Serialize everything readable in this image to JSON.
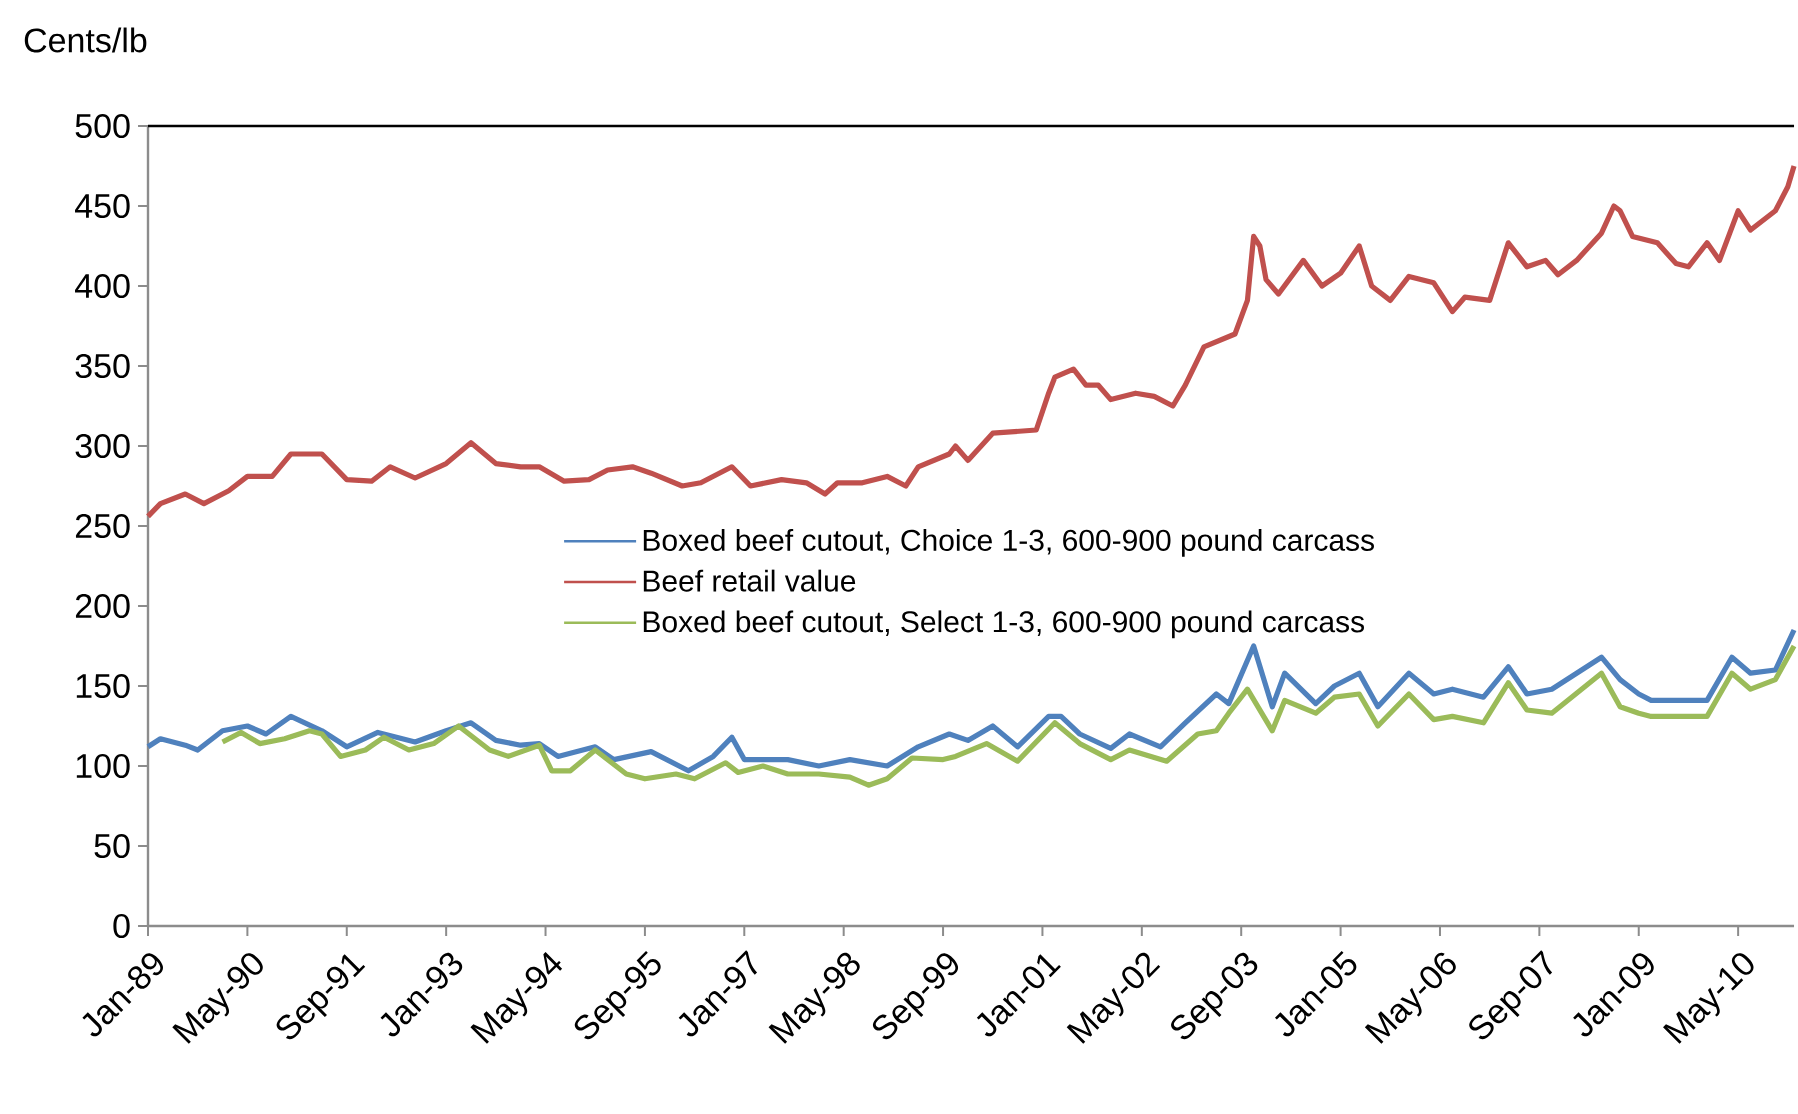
{
  "chart_data": {
    "type": "line",
    "ylabel": "Cents/lb",
    "xlim": [
      "1989-01",
      "2011-02"
    ],
    "ylim": [
      0,
      500
    ],
    "xticks": [
      {
        "value": "1989-01",
        "label": "Jan-89"
      },
      {
        "value": "1990-05",
        "label": "May-90"
      },
      {
        "value": "1991-09",
        "label": "Sep-91"
      },
      {
        "value": "1993-01",
        "label": "Jan-93"
      },
      {
        "value": "1994-05",
        "label": "May-94"
      },
      {
        "value": "1995-09",
        "label": "Sep-95"
      },
      {
        "value": "1997-01",
        "label": "Jan-97"
      },
      {
        "value": "1998-05",
        "label": "May-98"
      },
      {
        "value": "1999-09",
        "label": "Sep-99"
      },
      {
        "value": "2001-01",
        "label": "Jan-01"
      },
      {
        "value": "2002-05",
        "label": "May-02"
      },
      {
        "value": "2003-09",
        "label": "Sep-03"
      },
      {
        "value": "2005-01",
        "label": "Jan-05"
      },
      {
        "value": "2006-05",
        "label": "May-06"
      },
      {
        "value": "2007-09",
        "label": "Sep-07"
      },
      {
        "value": "2009-01",
        "label": "Jan-09"
      },
      {
        "value": "2010-05",
        "label": "May-10"
      }
    ],
    "yticks": [
      0,
      50,
      100,
      150,
      200,
      250,
      300,
      350,
      400,
      450,
      500
    ],
    "grid": false,
    "legend": "center",
    "marker": "none",
    "line_style": "solid",
    "series": [
      {
        "name": "Boxed beef cutout, Choice 1-3, 600-900 pound carcass",
        "color": "#4f81bd",
        "x": [
          "1989-01",
          "1989-03",
          "1989-07",
          "1989-09",
          "1990-01",
          "1990-05",
          "1990-08",
          "1990-12",
          "1991-05",
          "1991-09",
          "1992-02",
          "1992-08",
          "1993-01",
          "1993-05",
          "1993-09",
          "1994-01",
          "1994-04",
          "1994-07",
          "1995-01",
          "1995-04",
          "1995-10",
          "1996-04",
          "1996-08",
          "1996-11",
          "1997-01",
          "1997-08",
          "1998-01",
          "1998-06",
          "1998-12",
          "1999-05",
          "1999-10",
          "2000-01",
          "2000-05",
          "2000-09",
          "2001-02",
          "2001-04",
          "2001-07",
          "2001-12",
          "2002-03",
          "2002-08",
          "2002-12",
          "2003-05",
          "2003-07",
          "2003-11",
          "2004-02",
          "2004-04",
          "2004-09",
          "2004-12",
          "2005-04",
          "2005-07",
          "2005-12",
          "2006-04",
          "2006-07",
          "2006-12",
          "2007-04",
          "2007-07",
          "2007-11",
          "2008-07",
          "2008-10",
          "2009-01",
          "2009-03",
          "2009-07",
          "2009-12",
          "2010-04",
          "2010-07",
          "2010-11",
          "2011-02"
        ],
        "values": [
          112,
          117,
          113,
          110,
          122,
          125,
          120,
          131,
          122,
          112,
          121,
          115,
          122,
          127,
          116,
          113,
          114,
          106,
          112,
          104,
          109,
          97,
          106,
          118,
          104,
          104,
          100,
          104,
          100,
          112,
          120,
          116,
          125,
          112,
          131,
          131,
          120,
          111,
          120,
          112,
          127,
          145,
          139,
          175,
          137,
          158,
          139,
          150,
          158,
          137,
          158,
          145,
          148,
          143,
          162,
          145,
          148,
          168,
          154,
          145,
          141,
          141,
          141,
          168,
          158,
          160,
          185
        ]
      },
      {
        "name": "Beef retail value",
        "color": "#c0504d",
        "x": [
          "1989-01",
          "1989-03",
          "1989-07",
          "1989-10",
          "1990-02",
          "1990-05",
          "1990-09",
          "1990-12",
          "1991-05",
          "1991-09",
          "1992-01",
          "1992-04",
          "1992-08",
          "1993-01",
          "1993-05",
          "1993-09",
          "1994-01",
          "1994-04",
          "1994-08",
          "1994-12",
          "1995-03",
          "1995-07",
          "1995-10",
          "1996-03",
          "1996-06",
          "1996-11",
          "1997-02",
          "1997-07",
          "1997-11",
          "1998-02",
          "1998-04",
          "1998-08",
          "1998-12",
          "1999-03",
          "1999-05",
          "1999-10",
          "1999-11",
          "2000-01",
          "2000-05",
          "2000-12",
          "2001-02",
          "2001-03",
          "2001-06",
          "2001-08",
          "2001-10",
          "2001-12",
          "2002-04",
          "2002-07",
          "2002-10",
          "2002-12",
          "2003-03",
          "2003-08",
          "2003-10",
          "2003-11",
          "2003-12",
          "2004-01",
          "2004-03",
          "2004-07",
          "2004-10",
          "2005-01",
          "2005-04",
          "2005-06",
          "2005-09",
          "2005-12",
          "2006-04",
          "2006-07",
          "2006-09",
          "2007-01",
          "2007-04",
          "2007-07",
          "2007-10",
          "2007-12",
          "2008-03",
          "2008-07",
          "2008-09",
          "2008-10",
          "2008-12",
          "2009-04",
          "2009-07",
          "2009-09",
          "2009-12",
          "2010-02",
          "2010-05",
          "2010-07",
          "2010-11",
          "2011-01",
          "2011-02"
        ],
        "values": [
          256,
          264,
          270,
          264,
          272,
          281,
          281,
          295,
          295,
          279,
          278,
          287,
          280,
          289,
          302,
          289,
          287,
          287,
          278,
          279,
          285,
          287,
          283,
          275,
          277,
          287,
          275,
          279,
          277,
          270,
          277,
          277,
          281,
          275,
          287,
          295,
          300,
          291,
          308,
          310,
          333,
          343,
          348,
          338,
          338,
          329,
          333,
          331,
          325,
          338,
          362,
          370,
          391,
          431,
          425,
          404,
          395,
          416,
          400,
          408,
          425,
          400,
          391,
          406,
          402,
          384,
          393,
          391,
          427,
          412,
          416,
          407,
          416,
          433,
          450,
          447,
          431,
          427,
          414,
          412,
          427,
          416,
          447,
          435,
          447,
          462,
          475
        ]
      },
      {
        "name": "Boxed beef cutout, Select 1-3, 600-900 pound carcass",
        "color": "#9bbb59",
        "x": [
          "1990-01",
          "1990-04",
          "1990-07",
          "1990-11",
          "1991-03",
          "1991-05",
          "1991-08",
          "1991-12",
          "1992-03",
          "1992-07",
          "1992-11",
          "1993-03",
          "1993-08",
          "1993-11",
          "1994-04",
          "1994-06",
          "1994-09",
          "1995-01",
          "1995-06",
          "1995-09",
          "1996-02",
          "1996-05",
          "1996-10",
          "1996-12",
          "1997-04",
          "1997-08",
          "1998-01",
          "1998-06",
          "1998-09",
          "1998-12",
          "1999-04",
          "1999-09",
          "1999-11",
          "2000-04",
          "2000-09",
          "2001-03",
          "2001-07",
          "2001-12",
          "2002-03",
          "2002-09",
          "2003-02",
          "2003-05",
          "2003-07",
          "2003-10",
          "2004-02",
          "2004-04",
          "2004-09",
          "2004-12",
          "2005-04",
          "2005-07",
          "2005-12",
          "2006-04",
          "2006-07",
          "2006-12",
          "2007-04",
          "2007-07",
          "2007-11",
          "2008-07",
          "2008-10",
          "2009-01",
          "2009-03",
          "2009-07",
          "2009-12",
          "2010-04",
          "2010-07",
          "2010-11",
          "2011-02"
        ],
        "values": [
          115,
          121,
          114,
          117,
          122,
          120,
          106,
          110,
          118,
          110,
          114,
          125,
          110,
          106,
          113,
          97,
          97,
          110,
          95,
          92,
          95,
          92,
          102,
          96,
          100,
          95,
          95,
          93,
          88,
          92,
          105,
          104,
          106,
          114,
          103,
          127,
          114,
          104,
          110,
          103,
          120,
          122,
          133,
          148,
          122,
          141,
          133,
          143,
          145,
          125,
          145,
          129,
          131,
          127,
          152,
          135,
          133,
          158,
          137,
          133,
          131,
          131,
          131,
          158,
          148,
          154,
          175
        ]
      }
    ]
  }
}
